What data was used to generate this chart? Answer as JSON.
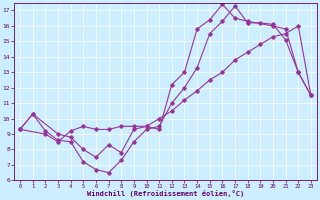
{
  "xlabel": "Windchill (Refroidissement éolien,°C)",
  "bg_color": "#cceeff",
  "line_color": "#993399",
  "xlim": [
    -0.5,
    23.5
  ],
  "ylim": [
    6,
    17.5
  ],
  "yticks": [
    6,
    7,
    8,
    9,
    10,
    11,
    12,
    13,
    14,
    15,
    16,
    17
  ],
  "xticks": [
    0,
    1,
    2,
    3,
    4,
    5,
    6,
    7,
    8,
    9,
    10,
    11,
    12,
    13,
    14,
    15,
    16,
    17,
    18,
    19,
    20,
    21,
    22,
    23
  ],
  "line1_x": [
    0,
    1,
    2,
    3,
    4,
    5,
    6,
    7,
    8,
    9,
    10,
    11,
    12,
    13,
    14,
    15,
    16,
    17,
    18,
    19,
    20,
    21,
    22,
    23
  ],
  "line1_y": [
    9.3,
    10.3,
    9.2,
    8.6,
    8.5,
    7.2,
    6.7,
    6.5,
    7.3,
    8.5,
    9.3,
    9.5,
    11.0,
    12.0,
    13.3,
    15.5,
    16.3,
    17.3,
    16.2,
    16.2,
    16.1,
    15.1,
    13.0,
    11.5
  ],
  "line2_x": [
    0,
    1,
    3,
    4,
    5,
    6,
    7,
    8,
    9,
    10,
    11,
    12,
    13,
    14,
    15,
    16,
    17,
    18,
    20,
    21,
    22,
    23
  ],
  "line2_y": [
    9.3,
    10.3,
    9.0,
    8.8,
    8.0,
    7.5,
    8.3,
    7.8,
    9.3,
    9.5,
    9.3,
    12.2,
    13.0,
    15.8,
    16.4,
    17.4,
    16.5,
    16.3,
    16.0,
    15.8,
    13.0,
    11.5
  ],
  "line3_x": [
    0,
    2,
    3,
    4,
    5,
    6,
    7,
    8,
    9,
    10,
    11,
    12,
    13,
    14,
    15,
    16,
    17,
    18,
    19,
    20,
    21,
    22,
    23
  ],
  "line3_y": [
    9.3,
    9.0,
    8.5,
    9.2,
    9.5,
    9.3,
    9.3,
    9.5,
    9.5,
    9.5,
    10.0,
    10.5,
    11.2,
    11.8,
    12.5,
    13.0,
    13.8,
    14.3,
    14.8,
    15.3,
    15.5,
    16.0,
    11.5
  ]
}
